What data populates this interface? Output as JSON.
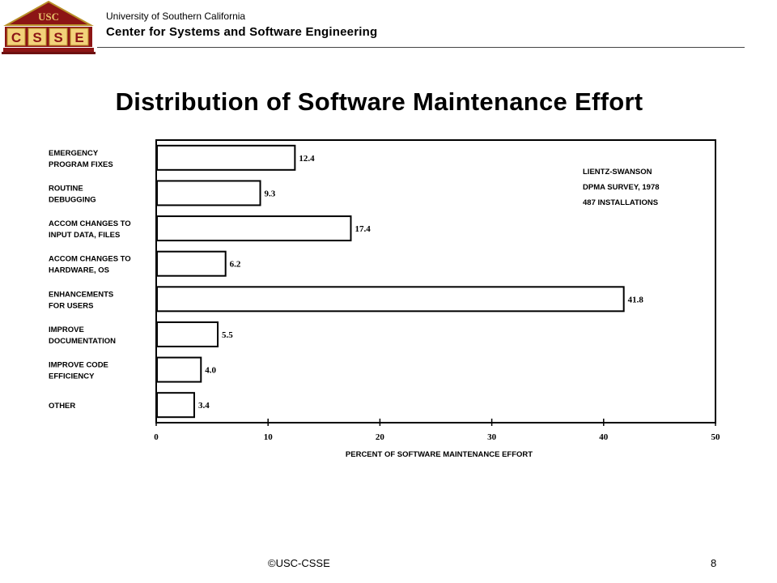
{
  "header": {
    "logo_top": "USC",
    "logo_letters": [
      "C",
      "S",
      "S",
      "E"
    ],
    "university": "University of Southern California",
    "center": "Center for Systems and Software Engineering"
  },
  "chart_data": {
    "type": "bar",
    "orientation": "horizontal",
    "title": "Distribution of Software Maintenance Effort",
    "xlabel": "PERCENT OF SOFTWARE MAINTENANCE EFFORT",
    "ylabel": "",
    "xlim": [
      0,
      50
    ],
    "xticks": [
      0,
      10,
      20,
      30,
      40,
      50
    ],
    "grid": false,
    "categories": [
      [
        "EMERGENCY",
        "PROGRAM FIXES"
      ],
      [
        "ROUTINE",
        "DEBUGGING"
      ],
      [
        "ACCOM CHANGES TO",
        "INPUT DATA, FILES"
      ],
      [
        "ACCOM CHANGES TO",
        "HARDWARE, OS"
      ],
      [
        "ENHANCEMENTS",
        "FOR USERS"
      ],
      [
        "IMPROVE",
        "DOCUMENTATION"
      ],
      [
        "IMPROVE CODE",
        "EFFICIENCY"
      ],
      [
        "OTHER"
      ]
    ],
    "values": [
      12.4,
      9.3,
      17.4,
      6.2,
      41.8,
      5.5,
      4.0,
      3.4
    ],
    "value_labels": [
      "12.4",
      "9.3",
      "17.4",
      "6.2",
      "41.8",
      "5.5",
      "4.0",
      "3.4"
    ],
    "annotation": [
      "LIENTZ-SWANSON",
      "DPMA SURVEY, 1978",
      "487 INSTALLATIONS"
    ],
    "bar_fill": "#ffffff",
    "bar_stroke": "#000000"
  },
  "footer": {
    "copyright": "©USC-CSSE",
    "page_number": "8"
  }
}
